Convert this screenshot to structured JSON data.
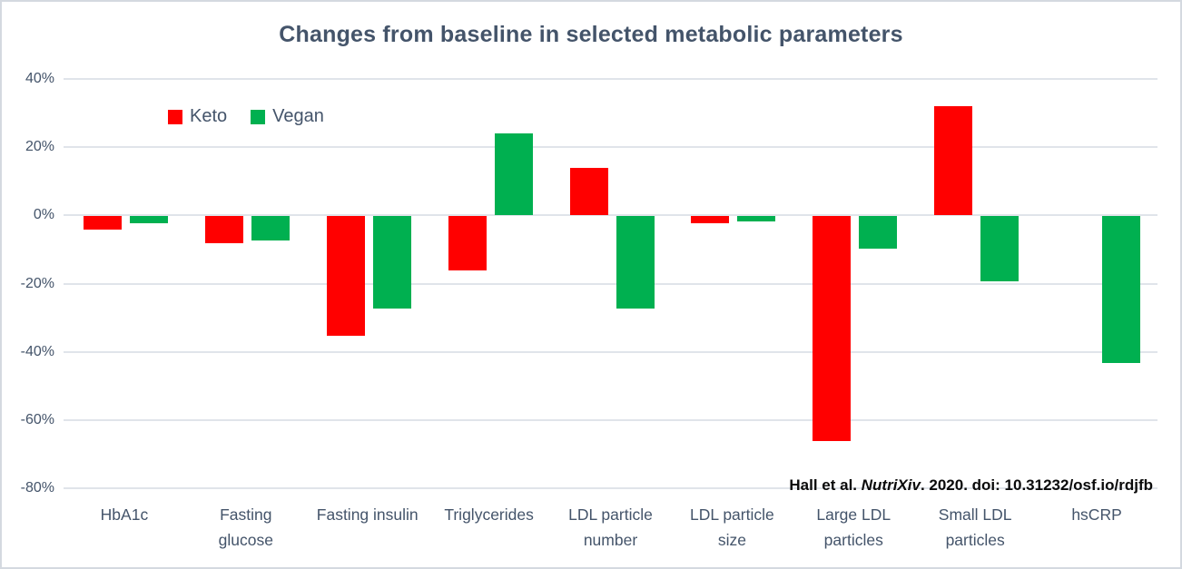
{
  "chart_data": {
    "type": "bar",
    "title": "Changes from baseline in selected metabolic parameters",
    "categories": [
      "HbA1c",
      "Fasting glucose",
      "Fasting insulin",
      "Triglycerides",
      "LDL particle number",
      "LDL particle size",
      "Large LDL particles",
      "Small LDL particles",
      "hsCRP"
    ],
    "series": [
      {
        "name": "Keto",
        "color": "#ff0000",
        "values": [
          -4,
          -8,
          -35,
          -16,
          14,
          -2,
          -66,
          32,
          0
        ]
      },
      {
        "name": "Vegan",
        "color": "#00b050",
        "values": [
          -2,
          -7,
          -27,
          24,
          -27,
          -1.5,
          -9.5,
          -19,
          -43
        ]
      }
    ],
    "ylabel": "",
    "xlabel": "",
    "unit": "%",
    "ylim": [
      -80,
      40
    ],
    "y_axis": {
      "ticks": [
        "40%",
        "20%",
        "0%",
        "-20%",
        "-40%",
        "-60%",
        "-80%"
      ],
      "tick_values": [
        40,
        20,
        0,
        -20,
        -40,
        -60,
        -80
      ]
    },
    "grid": true,
    "legend_position": "inside-top-left",
    "annotation": {
      "prefix": "Hall et al. ",
      "journal_italic": "NutriXiv",
      "suffix": ". 2020. doi: 10.31232/osf.io/rdjfb"
    }
  },
  "colors": {
    "text": "#44546a",
    "gridline": "#e0e4ea",
    "frame_border": "#d4d9e0",
    "citation_text": "#0a0a0a",
    "background": "#ffffff"
  }
}
